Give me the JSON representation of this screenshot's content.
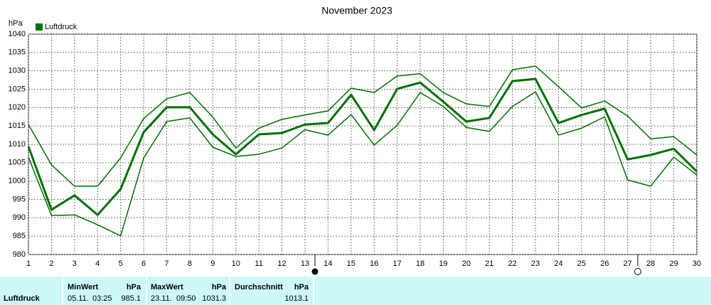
{
  "chart_data": {
    "type": "line",
    "title": "November 2023",
    "y_unit": "hPa",
    "x": [
      1,
      2,
      3,
      4,
      5,
      6,
      7,
      8,
      9,
      10,
      11,
      12,
      13,
      14,
      15,
      16,
      17,
      18,
      19,
      20,
      21,
      22,
      23,
      24,
      25,
      26,
      27,
      28,
      29,
      30
    ],
    "xlim": [
      1,
      30
    ],
    "xticks": [
      1,
      2,
      3,
      4,
      5,
      6,
      7,
      8,
      9,
      10,
      11,
      12,
      13,
      14,
      15,
      16,
      17,
      18,
      19,
      20,
      21,
      22,
      23,
      24,
      25,
      26,
      27,
      28,
      29,
      30
    ],
    "ylim": [
      980,
      1040
    ],
    "yticks": [
      980,
      985,
      990,
      995,
      1000,
      1005,
      1010,
      1015,
      1020,
      1025,
      1030,
      1035,
      1040
    ],
    "grid": true,
    "legend": "top-left",
    "series": [
      {
        "name": "Luftdruck",
        "color": "#007000",
        "width": 3,
        "values": [
          1009.4,
          992.2,
          996.1,
          990.8,
          997.8,
          1013.3,
          1020.1,
          1020.1,
          1012.7,
          1007.3,
          1012.7,
          1013.1,
          1015.4,
          1015.8,
          1023.5,
          1013.9,
          1025.1,
          1026.8,
          1021.6,
          1016.2,
          1017.2,
          1027.2,
          1027.8,
          1015.8,
          1018,
          1019.7,
          1005.9,
          1007.1,
          1008.8,
          1002.6
        ]
      },
      {
        "color": "#007000",
        "width": 1.5,
        "values": [
          1015.4,
          1004.4,
          998.6,
          998.6,
          1006.3,
          1017,
          1022.4,
          1024.1,
          1017.4,
          1009,
          1014.4,
          1016.8,
          1018,
          1019.1,
          1025.3,
          1024.1,
          1028.6,
          1029.2,
          1024.1,
          1021,
          1020.3,
          1030.3,
          1031.3,
          1025.7,
          1019.9,
          1021.8,
          1017.7,
          1011.5,
          1012.1,
          1007.1
        ]
      },
      {
        "color": "#007000",
        "width": 1.5,
        "values": [
          1006.5,
          990.6,
          990.8,
          988.1,
          985.1,
          1006.3,
          1016.2,
          1017.2,
          1009.2,
          1006.7,
          1007.3,
          1009,
          1014,
          1012.5,
          1018.1,
          1009.8,
          1015.2,
          1024.1,
          1020.3,
          1014.6,
          1013.5,
          1020.3,
          1024.3,
          1012.5,
          1014.4,
          1017.5,
          1000.3,
          998.6,
          1006.5,
          1001.7
        ]
      }
    ]
  },
  "stats": {
    "row_label": "Luftdruck",
    "min": {
      "header": "MinWert",
      "unit": "hPa",
      "date": "05.11.",
      "time": "03:25",
      "value": 985.1
    },
    "max": {
      "header": "MaxWert",
      "unit": "hPa",
      "date": "23.11.",
      "time": "09:50",
      "value": 1031.3
    },
    "avg": {
      "header": "Durchschnitt",
      "unit": "hPa",
      "value": 1013.1
    }
  }
}
